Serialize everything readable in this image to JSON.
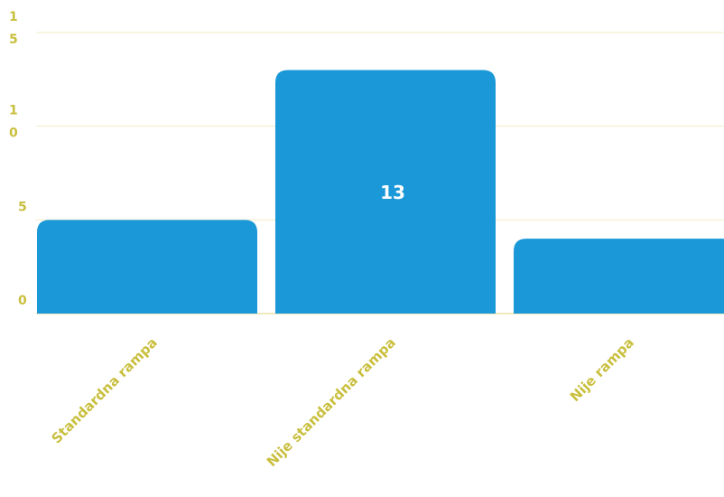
{
  "chart_data": {
    "type": "bar",
    "categories": [
      "Standardna rampa",
      "Nije standardna rampa",
      "Nije rampa"
    ],
    "values": [
      5,
      13,
      4
    ],
    "data_labels": [
      "",
      "13",
      ""
    ],
    "ylim": [
      0,
      15
    ],
    "yticks": [
      {
        "value": 0,
        "lines": [
          "0"
        ]
      },
      {
        "value": 5,
        "lines": [
          "5"
        ]
      },
      {
        "value": 10,
        "lines": [
          "1",
          "0"
        ]
      },
      {
        "value": 15,
        "lines": [
          "1",
          "5"
        ]
      }
    ],
    "grid": true,
    "colors": {
      "bar": "#1a98d8",
      "tick_text": "#c9bf3e",
      "grid": "#f1edc4",
      "data_label": "#ffffff"
    }
  }
}
